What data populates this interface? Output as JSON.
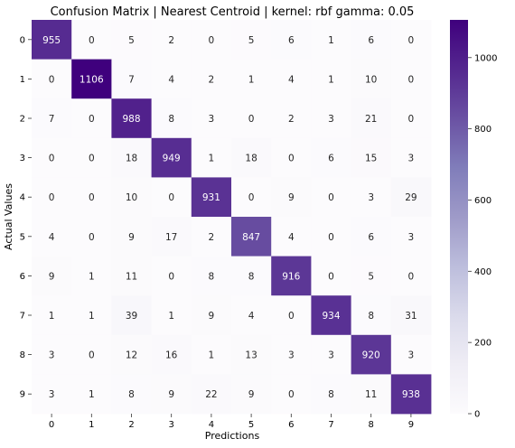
{
  "chart_data": {
    "type": "heatmap",
    "title": "Confusion Matrix | Nearest Centroid | kernel: rbf gamma: 0.05",
    "xlabel": "Predictions",
    "ylabel": "Actual Values",
    "x_categories": [
      "0",
      "1",
      "2",
      "3",
      "4",
      "5",
      "6",
      "7",
      "8",
      "9"
    ],
    "y_categories": [
      "0",
      "1",
      "2",
      "3",
      "4",
      "5",
      "6",
      "7",
      "8",
      "9"
    ],
    "values": [
      [
        955,
        0,
        5,
        2,
        0,
        5,
        6,
        1,
        6,
        0
      ],
      [
        0,
        1106,
        7,
        4,
        2,
        1,
        4,
        1,
        10,
        0
      ],
      [
        7,
        0,
        988,
        8,
        3,
        0,
        2,
        3,
        21,
        0
      ],
      [
        0,
        0,
        18,
        949,
        1,
        18,
        0,
        6,
        15,
        3
      ],
      [
        0,
        0,
        10,
        0,
        931,
        0,
        9,
        0,
        3,
        29
      ],
      [
        4,
        0,
        9,
        17,
        2,
        847,
        4,
        0,
        6,
        3
      ],
      [
        9,
        1,
        11,
        0,
        8,
        8,
        916,
        0,
        5,
        0
      ],
      [
        1,
        1,
        39,
        1,
        9,
        4,
        0,
        934,
        8,
        31
      ],
      [
        3,
        0,
        12,
        16,
        1,
        13,
        3,
        3,
        920,
        3
      ],
      [
        3,
        1,
        8,
        9,
        22,
        9,
        0,
        8,
        11,
        938
      ]
    ],
    "colormap": "Purples",
    "color_range": [
      0,
      1106
    ],
    "colorbar_ticks": [
      0,
      200,
      400,
      600,
      800,
      1000
    ],
    "grid": false,
    "legend": "colorbar-right"
  }
}
